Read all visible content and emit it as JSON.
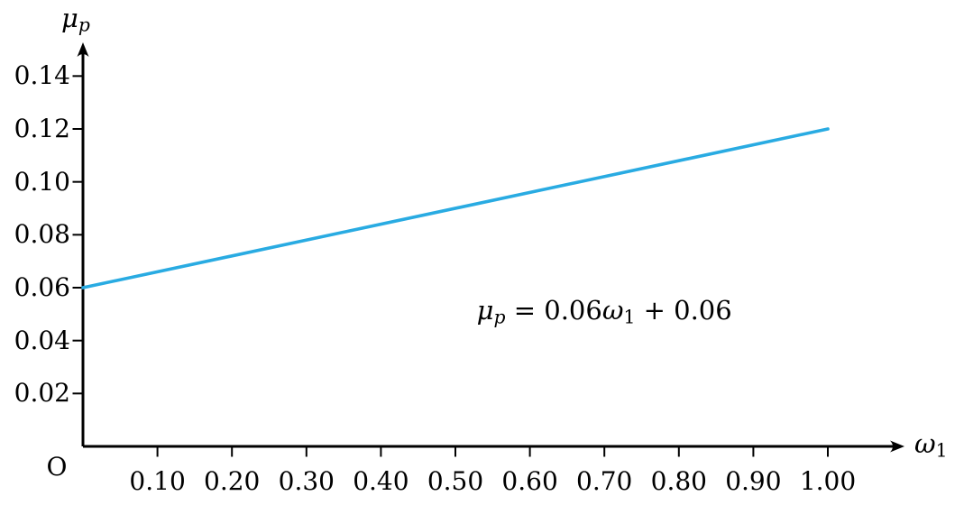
{
  "chart_data": {
    "type": "line",
    "title": "",
    "xlabel": "ω_1",
    "ylabel": "μ_p",
    "origin_label": "O",
    "xlim": [
      0,
      1.1
    ],
    "ylim": [
      0,
      0.151
    ],
    "grid": false,
    "legend": null,
    "axis_color": "#000000",
    "x_ticks": {
      "values": [
        0.1,
        0.2,
        0.3,
        0.4,
        0.5,
        0.6,
        0.7,
        0.8,
        0.9,
        1.0
      ],
      "labels": [
        "0.10",
        "0.20",
        "0.30",
        "0.40",
        "0.50",
        "0.60",
        "0.70",
        "0.80",
        "0.90",
        "1.00"
      ]
    },
    "y_ticks": {
      "values": [
        0.02,
        0.04,
        0.06,
        0.08,
        0.1,
        0.12,
        0.14
      ],
      "labels": [
        "0.02",
        "0.04",
        "0.06",
        "0.08",
        "0.10",
        "0.12",
        "0.14"
      ]
    },
    "series": [
      {
        "name": "portfolio-return-line",
        "color": "#29ABE2",
        "x": [
          0,
          1.0
        ],
        "y": [
          0.06,
          0.12
        ]
      }
    ],
    "annotation": {
      "text": "μ_p = 0.06ω_1 + 0.06",
      "x": 0.7,
      "y": 0.051
    },
    "labels_rich": {
      "ylabel": [
        {
          "t": "μ",
          "i": true
        },
        {
          "t": "p",
          "i": true,
          "sub": true
        }
      ],
      "xlabel": [
        {
          "t": "ω",
          "i": true
        },
        {
          "t": "1",
          "sub": true
        }
      ],
      "equation": [
        {
          "t": "μ",
          "i": true
        },
        {
          "t": "p",
          "i": true,
          "sub": true
        },
        {
          "t": " = 0.06"
        },
        {
          "t": "ω",
          "i": true
        },
        {
          "t": "1",
          "sub": true
        },
        {
          "t": " + 0.06"
        }
      ]
    }
  }
}
